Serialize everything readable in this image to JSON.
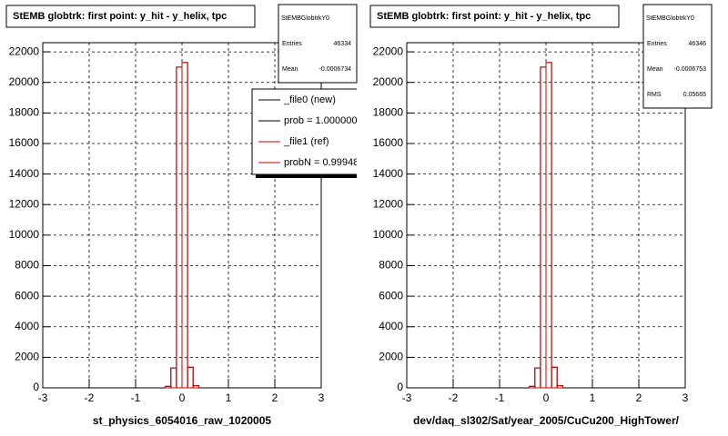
{
  "chart_data": [
    {
      "type": "histogram",
      "title": "StEMB globtrk: first point: y_hit - y_helix, tpc",
      "xlabel": "st_physics_6054016_raw_1020005",
      "bins": [
        -0.36,
        -0.24,
        -0.12,
        0,
        0.12,
        0.24,
        0.36
      ],
      "series": [
        {
          "name": "_file0 (new)",
          "color": "#000000",
          "values": [
            100,
            1300,
            21000,
            21300,
            1350,
            150
          ]
        },
        {
          "name": "_file1 (ref)",
          "color": "#cc0000",
          "values": [
            100,
            1300,
            21000,
            21300,
            1350,
            150
          ]
        }
      ],
      "legend_notes": [
        "prob = 1.000000",
        "probN = 0.99948"
      ],
      "legend": true,
      "xlim": [
        -3,
        3
      ],
      "xticks": [
        -3,
        -2,
        -1,
        0,
        1,
        2,
        3
      ],
      "ylim": [
        0,
        22600
      ],
      "yticks": [
        0,
        2000,
        4000,
        6000,
        8000,
        10000,
        12000,
        14000,
        16000,
        18000,
        20000,
        22000
      ],
      "grid": true,
      "stats": {
        "title": "StEMBGlobtrkY0",
        "rows": [
          {
            "label": "Entries",
            "value": 46334
          },
          {
            "label": "Mean",
            "value": -0.0006734
          }
        ]
      }
    },
    {
      "type": "histogram",
      "title": "StEMB globtrk: first point: y_hit - y_helix, tpc",
      "xlabel": "dev/daq_sl302/Sat/year_2005/CuCu200_HighTower/",
      "bins": [
        -0.36,
        -0.24,
        -0.12,
        0,
        0.12,
        0.24,
        0.36
      ],
      "series": [
        {
          "color": "#000000",
          "values": [
            100,
            1300,
            21000,
            21300,
            1350,
            150
          ]
        },
        {
          "color": "#cc0000",
          "values": [
            100,
            1300,
            21000,
            21300,
            1350,
            150
          ]
        }
      ],
      "legend": false,
      "xlim": [
        -3,
        3
      ],
      "xticks": [
        -3,
        -2,
        -1,
        0,
        1,
        2,
        3
      ],
      "ylim": [
        0,
        22600
      ],
      "yticks": [
        0,
        2000,
        4000,
        6000,
        8000,
        10000,
        12000,
        14000,
        16000,
        18000,
        20000,
        22000
      ],
      "grid": true,
      "stats": {
        "title": "StEMBGlobtrkY0",
        "rows": [
          {
            "label": "Entries",
            "value": 46346
          },
          {
            "label": "Mean",
            "value": -0.0006753
          },
          {
            "label": "RMS",
            "value": 0.05665
          }
        ]
      }
    }
  ]
}
